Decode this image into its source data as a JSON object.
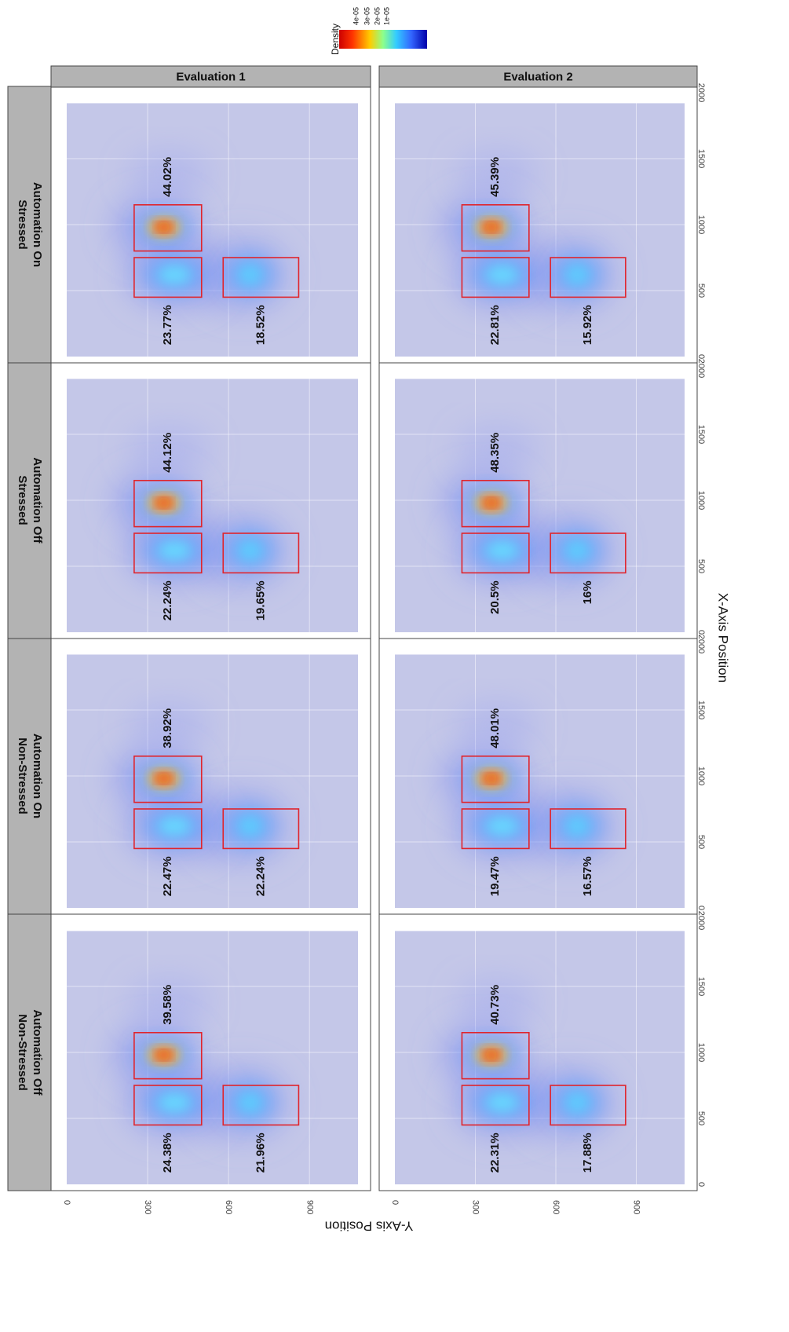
{
  "chart_data": {
    "type": "heatmap",
    "description_free": true,
    "xlabel": "X-Axis Position",
    "ylabel": "Y-Axis Position",
    "xlim": [
      0,
      2000
    ],
    "ylim": [
      0,
      1080
    ],
    "x_ticks": [
      "0",
      "500",
      "1000",
      "1500",
      "2000"
    ],
    "y_ticks": [
      "0",
      "300",
      "600",
      "900"
    ],
    "legend": {
      "title": "Density",
      "labels": [
        "4e-05",
        "3e-05",
        "2e-05",
        "1e-05"
      ],
      "colors": [
        "#cc0000",
        "#ff3300",
        "#ffcc00",
        "#8cff8c",
        "#33ccff",
        "#3366ff",
        "#0000aa"
      ]
    },
    "rows": [
      "Evaluation 1",
      "Evaluation 2"
    ],
    "columns": [
      "Non-Stressed\nAutomation Off",
      "Non-Stressed\nAutomation On",
      "Stressed\nAutomation Off",
      "Stressed\nAutomation On"
    ],
    "aoi_boxes": {
      "top": {
        "x": [
          800,
          1150
        ],
        "y": [
          250,
          500
        ]
      },
      "middle": {
        "x": [
          450,
          750
        ],
        "y": [
          250,
          500
        ]
      },
      "bottom": {
        "x": [
          450,
          750
        ],
        "y": [
          580,
          860
        ]
      }
    },
    "panels": [
      {
        "row": "Evaluation 1",
        "column": "Non-Stressed\nAutomation Off",
        "top": "39.58%",
        "middle": "24.38%",
        "bottom": "21.96%"
      },
      {
        "row": "Evaluation 1",
        "column": "Non-Stressed\nAutomation On",
        "top": "38.92%",
        "middle": "22.47%",
        "bottom": "22.24%"
      },
      {
        "row": "Evaluation 1",
        "column": "Stressed\nAutomation Off",
        "top": "44.12%",
        "middle": "22.24%",
        "bottom": "19.65%"
      },
      {
        "row": "Evaluation 1",
        "column": "Stressed\nAutomation On",
        "top": "44.02%",
        "middle": "23.77%",
        "bottom": "18.52%"
      },
      {
        "row": "Evaluation 2",
        "column": "Non-Stressed\nAutomation Off",
        "top": "40.73%",
        "middle": "22.31%",
        "bottom": "17.88%"
      },
      {
        "row": "Evaluation 2",
        "column": "Non-Stressed\nAutomation On",
        "top": "48.01%",
        "middle": "19.47%",
        "bottom": "16.57%"
      },
      {
        "row": "Evaluation 2",
        "column": "Stressed\nAutomation Off",
        "top": "48.35%",
        "middle": "20.5%",
        "bottom": "16%"
      },
      {
        "row": "Evaluation 2",
        "column": "Stressed\nAutomation On",
        "top": "45.39%",
        "middle": "22.81%",
        "bottom": "15.92%"
      }
    ]
  }
}
